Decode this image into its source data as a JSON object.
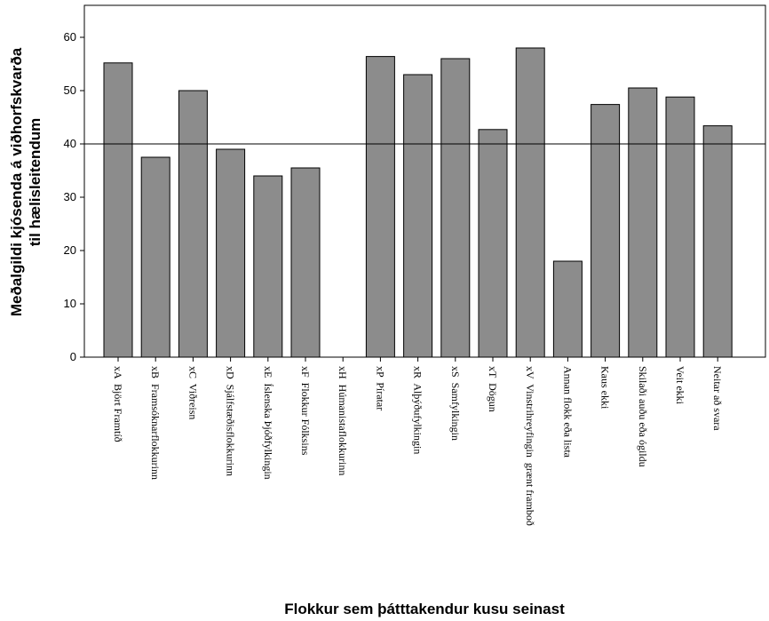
{
  "chart_data": {
    "type": "bar",
    "title": "",
    "xlabel": "Flokkur sem þátttakendur kusu seinast",
    "ylabel_lines": [
      "Meðalgildi kjósenda á viðhorfskvarða",
      "til hælisleitendum"
    ],
    "ylim": [
      0,
      66
    ],
    "yticks": [
      0,
      10,
      20,
      30,
      40,
      50,
      60
    ],
    "reference_line": 40,
    "grid": false,
    "categories": [
      "xA  Björt Framtíð",
      "xB  Framsóknarflokkurinn",
      "xC  Viðreisn",
      "xD  Sjálfstæðisflokkurinn",
      "xE  Íslenska Þjóðfylkingin",
      "xF  Flokkur Fólksins",
      "xH  Húmanistaflokkurinn",
      "xP  Píratar",
      "xR  Alþýðufylkingin",
      "xS  Samfylkingin",
      "xT  Dögun",
      "xV  Vinstrihreyfingin  grænt framboð",
      "Annan flokk eða lista",
      "Kaus ekki",
      "Skilaði auðu eða ógildu",
      "Veit ekki",
      "Neitar að svara"
    ],
    "values": [
      55.2,
      37.5,
      50.0,
      39.0,
      34.0,
      35.5,
      null,
      56.4,
      53.0,
      56.0,
      42.7,
      58.0,
      18.0,
      47.4,
      50.5,
      48.8,
      43.4
    ]
  }
}
